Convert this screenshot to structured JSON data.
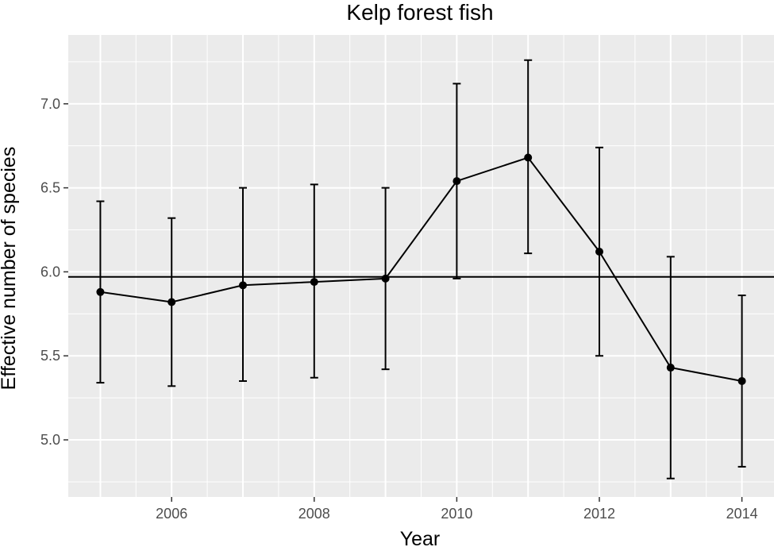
{
  "chart_data": {
    "type": "line",
    "title": "Kelp forest fish",
    "xlabel": "Year",
    "ylabel": "Effective number of species",
    "x": [
      2005,
      2006,
      2007,
      2008,
      2009,
      2010,
      2011,
      2012,
      2013,
      2014
    ],
    "xlim": [
      2004.55,
      2014.45
    ],
    "ylim": [
      4.66,
      7.41
    ],
    "x_ticks": [
      2006,
      2008,
      2010,
      2012,
      2014
    ],
    "y_ticks": [
      5.0,
      5.5,
      6.0,
      6.5,
      7.0
    ],
    "x_tick_labels": [
      "2006",
      "2008",
      "2010",
      "2012",
      "2014"
    ],
    "y_tick_labels": [
      "5.0",
      "5.5",
      "6.0",
      "6.5",
      "7.0"
    ],
    "series": [
      {
        "values": [
          5.88,
          5.82,
          5.92,
          5.94,
          5.96,
          6.54,
          6.68,
          6.12,
          5.43,
          5.35
        ],
        "lower": [
          5.34,
          5.32,
          5.35,
          5.37,
          5.42,
          5.96,
          6.11,
          5.5,
          4.77,
          4.84
        ],
        "upper": [
          6.42,
          6.32,
          6.5,
          6.52,
          6.5,
          7.12,
          7.26,
          6.74,
          6.09,
          5.86
        ]
      }
    ],
    "reference_line": 5.97,
    "grid": true,
    "colors": {
      "panel_background": "#ebebeb",
      "grid": "#ffffff",
      "series": "#000000",
      "tick_label": "#4d4d4d"
    }
  }
}
